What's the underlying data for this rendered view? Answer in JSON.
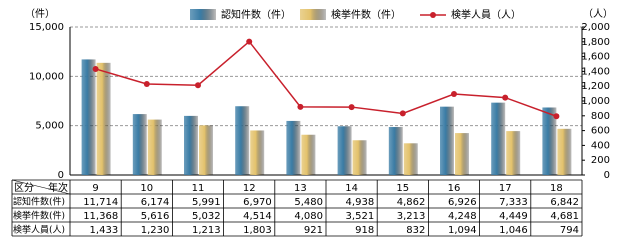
{
  "chart_data": {
    "type": "bar-line",
    "y_unit": "（件）",
    "y2_unit": "（人）",
    "categories": [
      "9",
      "10",
      "11",
      "12",
      "13",
      "14",
      "15",
      "16",
      "17",
      "18"
    ],
    "series": [
      {
        "name": "認知件数（件）",
        "type": "bar",
        "color": "#3a7ca5",
        "values": [
          11714,
          6174,
          5991,
          6970,
          5480,
          4938,
          4862,
          6926,
          7333,
          6842
        ],
        "value_labels": [
          "11,714",
          "6,174",
          "5,991",
          "6,970",
          "5,480",
          "4,938",
          "4,862",
          "6,926",
          "7,333",
          "6,842"
        ]
      },
      {
        "name": "検挙件数（件）",
        "type": "bar",
        "color": "#e3c26c",
        "values": [
          11368,
          5616,
          5032,
          4514,
          4080,
          3521,
          3213,
          4248,
          4449,
          4681
        ],
        "value_labels": [
          "11,368",
          "5,616",
          "5,032",
          "4,514",
          "4,080",
          "3,521",
          "3,213",
          "4,248",
          "4,449",
          "4,681"
        ]
      },
      {
        "name": "検挙人員（人）",
        "type": "line",
        "axis": "y2",
        "color": "#c8202c",
        "values": [
          1433,
          1230,
          1213,
          1803,
          921,
          918,
          832,
          1094,
          1046,
          794
        ],
        "value_labels": [
          "1,433",
          "1,230",
          "1,213",
          "1,803",
          "921",
          "918",
          "832",
          "1,094",
          "1,046",
          "794"
        ]
      }
    ],
    "ylim": [
      0,
      15000
    ],
    "yticks": [
      0,
      {
        "value": 5000,
        "label": "5,000"
      },
      {
        "value": 10000,
        "label": "10,000"
      },
      {
        "value": 15000,
        "label": "15,000"
      }
    ],
    "y2lim": [
      0,
      2000
    ],
    "y2ticks": [
      0,
      200,
      400,
      600,
      800,
      {
        "value": 1000,
        "label": "1,000"
      },
      {
        "value": 1200,
        "label": "1,200"
      },
      {
        "value": 1400,
        "label": "1,400"
      },
      {
        "value": 1600,
        "label": "1,600"
      },
      {
        "value": 1800,
        "label": "1,800"
      },
      {
        "value": 2000,
        "label": "2,000"
      }
    ],
    "grid": true,
    "table": {
      "header_left": "区分",
      "header_right": "年次",
      "row_labels": [
        "認知件数(件)",
        "検挙件数(件)",
        "検挙人員(人)"
      ]
    }
  }
}
